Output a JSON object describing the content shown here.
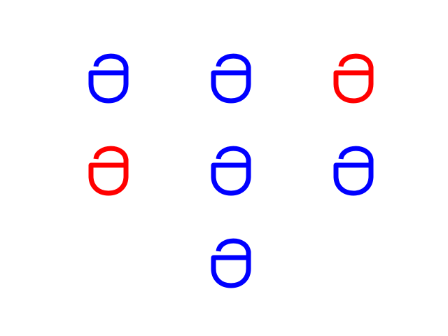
{
  "colors": {
    "background": "#ffffff",
    "blue": "#0000ff",
    "red": "#ff0000"
  },
  "glyph_icon": "open-padlock-shape",
  "grid": {
    "rows": [
      [
        "blue",
        "blue",
        "red"
      ],
      [
        "red",
        "blue",
        "blue"
      ],
      [
        null,
        "blue",
        null
      ]
    ]
  }
}
